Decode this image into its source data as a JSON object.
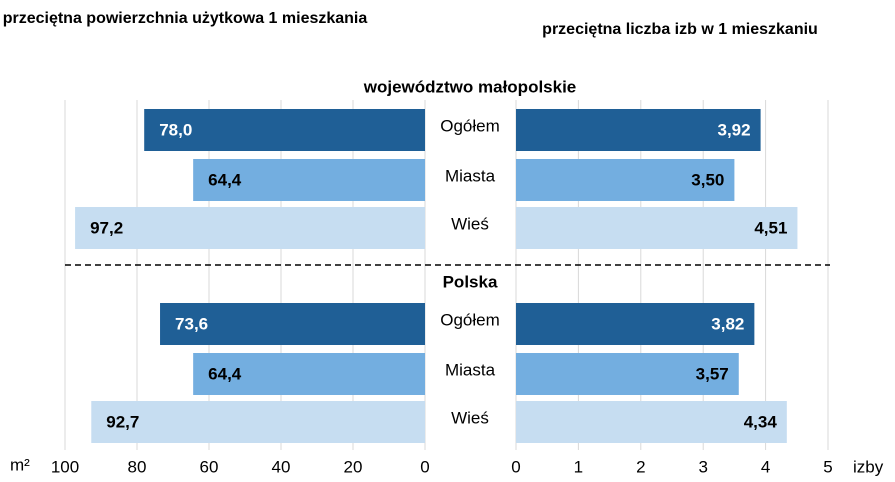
{
  "chart_data": [
    {
      "type": "bar",
      "orientation": "horizontal",
      "title": "przeciętna powierzchnia użytkowa 1 mieszkania",
      "xlabel": "m²",
      "categories": [
        "Ogółem",
        "Miasta",
        "Wieś"
      ],
      "colors": [
        "#1f5f96",
        "#73aee0",
        "#c6ddf1"
      ],
      "xlim": [
        0,
        100
      ],
      "reversed": true,
      "xticks": [
        0,
        20,
        40,
        60,
        80,
        100
      ],
      "grid": true,
      "series": [
        {
          "name": "województwo małopolskie",
          "values": [
            78.0,
            64.4,
            97.2
          ],
          "value_labels": [
            "78,0",
            "64,4",
            "97,2"
          ]
        },
        {
          "name": "Polska",
          "values": [
            73.6,
            64.4,
            92.7
          ],
          "value_labels": [
            "73,6",
            "64,4",
            "92,7"
          ]
        }
      ]
    },
    {
      "type": "bar",
      "orientation": "horizontal",
      "title": "przeciętna liczba izb w 1 mieszkaniu",
      "xlabel": "izby",
      "colors": [
        "#1f5f96",
        "#73aee0",
        "#c6ddf1"
      ],
      "xlim": [
        0,
        5
      ],
      "reversed": false,
      "xticks": [
        0,
        1,
        2,
        3,
        4,
        5
      ],
      "grid": true,
      "series": [
        {
          "name": "województwo małopolskie",
          "values": [
            3.92,
            3.5,
            4.51
          ],
          "value_labels": [
            "3,92",
            "3,50",
            "4,51"
          ]
        },
        {
          "name": "Polska",
          "values": [
            3.82,
            3.57,
            4.34
          ],
          "value_labels": [
            "3,82",
            "3,57",
            "4,34"
          ]
        }
      ]
    }
  ]
}
